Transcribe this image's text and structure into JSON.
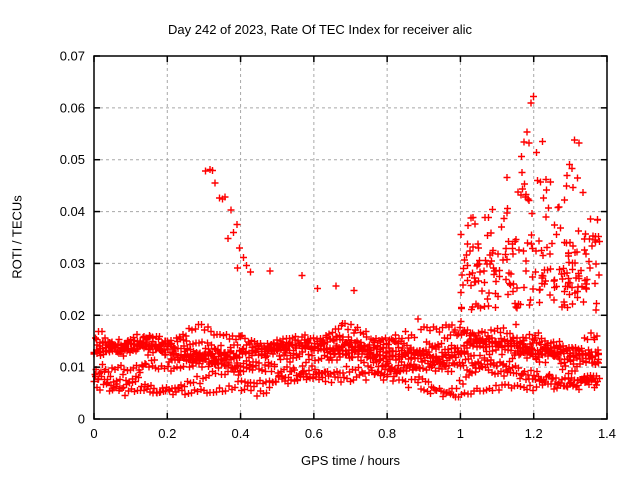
{
  "chart_data": {
    "type": "scatter",
    "title": "Day 242 of 2023, Rate Of TEC Index for receiver alic",
    "xlabel": "GPS time / hours",
    "ylabel": "ROTI / TECUs",
    "xlim": [
      0,
      1.4
    ],
    "ylim": [
      0,
      0.07
    ],
    "xtick_labels": [
      "0",
      "0.2",
      "0.4",
      "0.6",
      "0.8",
      "1",
      "1.2",
      "1.4"
    ],
    "xtick_values": [
      0,
      0.2,
      0.4,
      0.6,
      0.8,
      1.0,
      1.2,
      1.4
    ],
    "ytick_labels": [
      "0",
      "0.01",
      "0.02",
      "0.03",
      "0.04",
      "0.05",
      "0.06",
      "0.07"
    ],
    "ytick_values": [
      0,
      0.01,
      0.02,
      0.03,
      0.04,
      0.05,
      0.06,
      0.07
    ],
    "grid": {
      "show": true,
      "style": "dashed",
      "color": "#a8a8a8"
    },
    "frame_color": "#000000",
    "marker": {
      "shape": "plus",
      "color": "#ff0000",
      "size": 7,
      "stroke_width": 1.4
    },
    "legend": "none",
    "series": [
      {
        "name": "ROTI",
        "description": "Dense wavy multi-satellite band 0.004-0.026 TECUs across 0-1.38 h; descending streak 0.048->0.028 near 0.30-0.43 h; storm enhancement up to 0.062 between 1.0-1.38 h peaking near 1.2 h",
        "explicit_points": {
          "descending_streak": [
            [
              0.304,
              0.0478
            ],
            [
              0.316,
              0.0481
            ],
            [
              0.323,
              0.0479
            ],
            [
              0.33,
              0.0455
            ],
            [
              0.343,
              0.0426
            ],
            [
              0.35,
              0.0424
            ],
            [
              0.357,
              0.0428
            ],
            [
              0.374,
              0.0403
            ],
            [
              0.39,
              0.0375
            ],
            [
              0.381,
              0.036
            ],
            [
              0.366,
              0.0348
            ],
            [
              0.397,
              0.033
            ],
            [
              0.408,
              0.0311
            ],
            [
              0.416,
              0.0296
            ],
            [
              0.427,
              0.0283
            ],
            [
              0.391,
              0.0291
            ]
          ],
          "storm_high": [
            [
              1.199,
              0.0622
            ],
            [
              1.192,
              0.0609
            ],
            [
              1.181,
              0.0553
            ],
            [
              1.173,
              0.0534
            ],
            [
              1.187,
              0.0532
            ],
            [
              1.224,
              0.0535
            ],
            [
              1.311,
              0.0538
            ],
            [
              1.324,
              0.0532
            ],
            [
              1.207,
              0.0514
            ],
            [
              1.166,
              0.0506
            ],
            [
              1.298,
              0.0491
            ],
            [
              1.304,
              0.0483
            ],
            [
              1.168,
              0.0475
            ],
            [
              1.211,
              0.046
            ],
            [
              1.219,
              0.0457
            ],
            [
              1.233,
              0.0462
            ],
            [
              1.246,
              0.0457
            ],
            [
              1.289,
              0.0449
            ],
            [
              1.235,
              0.0442
            ],
            [
              1.157,
              0.0438
            ],
            [
              1.165,
              0.0432
            ],
            [
              1.177,
              0.0428
            ],
            [
              1.185,
              0.0424
            ],
            [
              1.088,
              0.0404
            ],
            [
              1.128,
              0.0406
            ],
            [
              1.196,
              0.0396
            ],
            [
              1.241,
              0.0407
            ],
            [
              1.233,
              0.039
            ],
            [
              1.077,
              0.0389
            ],
            [
              1.119,
              0.0387
            ],
            [
              1.034,
              0.0389
            ],
            [
              1.374,
              0.0385
            ],
            [
              1.368,
              0.0352
            ],
            [
              1.379,
              0.0342
            ]
          ],
          "mid_outliers": [
            [
              0.48,
              0.0285
            ],
            [
              0.567,
              0.0277
            ],
            [
              0.61,
              0.0252
            ],
            [
              0.66,
              0.0256
            ],
            [
              0.71,
              0.0248
            ]
          ]
        },
        "generated_clusters": [
          {
            "kind": "traces",
            "label": "main-band",
            "n_traces": 10,
            "x_start": 0.0,
            "x_end": 1.38,
            "x_step": 0.0085,
            "base_min": 0.0075,
            "base_max": 0.0165,
            "amp_min": 0.0012,
            "amp_max": 0.0034,
            "freq_min": 0.7,
            "freq_max": 3.0,
            "noise": 0.0014,
            "spike_chance": 0.015,
            "spike_max": 0.005,
            "y_min": 0.0042,
            "y_max": 0.026
          },
          {
            "kind": "cloud",
            "label": "storm-low",
            "n": 140,
            "x_min": 1.0,
            "x_max": 1.38,
            "y_min": 0.021,
            "y_max": 0.036,
            "power": 1.6
          },
          {
            "kind": "cloud",
            "label": "storm-mid",
            "n": 55,
            "x_min": 1.08,
            "x_max": 1.38,
            "y_min": 0.026,
            "y_max": 0.048,
            "power": 1.8
          },
          {
            "kind": "cloud",
            "label": "storm-onset",
            "n": 18,
            "x_min": 1.0,
            "x_max": 1.1,
            "y_min": 0.026,
            "y_max": 0.041,
            "power": 1.5
          }
        ]
      }
    ]
  }
}
